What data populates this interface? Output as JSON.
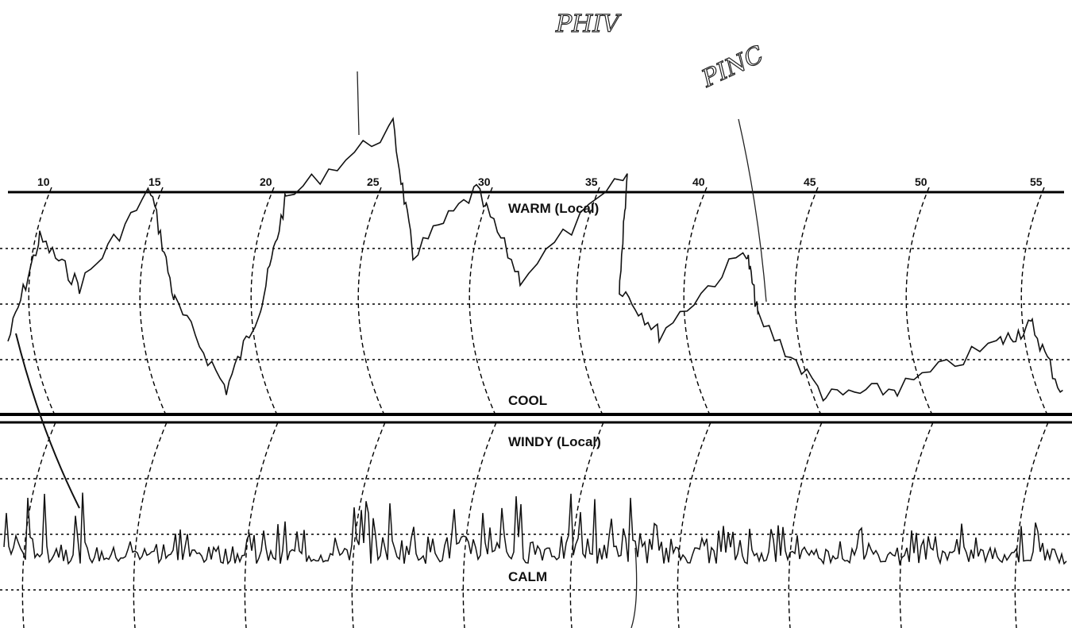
{
  "time_labels": [
    "10",
    "15",
    "20",
    "25",
    "30",
    "35",
    "40",
    "45",
    "50",
    "55"
  ],
  "upper_band": {
    "top_label": "WARM (Local)",
    "bottom_label": "COOL"
  },
  "lower_band": {
    "top_label": "WINDY (Local)",
    "bottom_label": "CALM"
  },
  "annotations": [
    "PHIV",
    "PINC"
  ]
}
